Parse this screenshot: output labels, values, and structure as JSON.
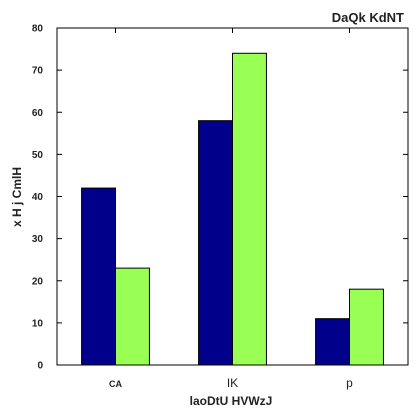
{
  "chart_data": {
    "type": "bar",
    "title": "DaQk KdNT",
    "xlabel": "laoDtU HVWzJ",
    "ylabel": "x H j CmlH",
    "categories": [
      "CA",
      "IK",
      "p"
    ],
    "series": [
      {
        "values": [
          42,
          58,
          11
        ],
        "color": "#00008b"
      },
      {
        "values": [
          23,
          74,
          18
        ],
        "color": "#99ff55"
      }
    ],
    "ylim": [
      0,
      80
    ],
    "yticks": [
      0,
      10,
      20,
      30,
      40,
      50,
      60,
      70,
      80
    ],
    "grid": false,
    "legend": "none"
  }
}
